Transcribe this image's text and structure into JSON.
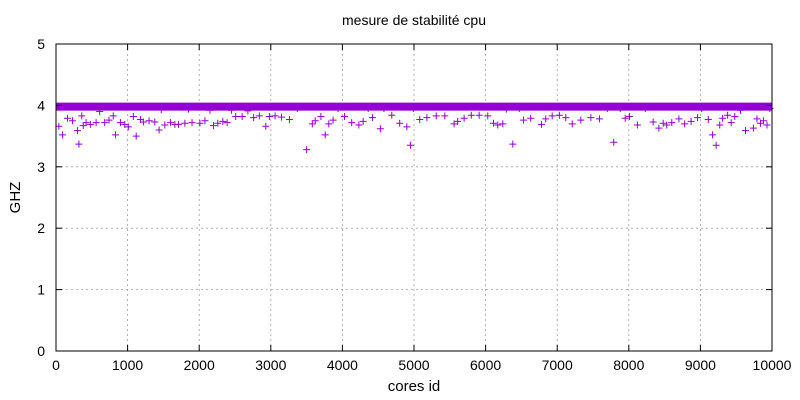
{
  "chart_data": {
    "type": "scatter",
    "title": "mesure de stabilité cpu",
    "xlabel": "cores id",
    "ylabel": "GHZ",
    "xlim": [
      0,
      10000
    ],
    "ylim": [
      0,
      5
    ],
    "xticks": [
      0,
      1000,
      2000,
      3000,
      4000,
      5000,
      6000,
      7000,
      8000,
      9000,
      10000
    ],
    "yticks": [
      0,
      1,
      2,
      3,
      4,
      5
    ],
    "grid": true,
    "marker": "plus",
    "color": "#9400d3",
    "series": [
      {
        "name": "",
        "dense_band": {
          "x_start": 0,
          "x_end": 10000,
          "y": 3.98
        },
        "points": [
          [
            40,
            3.66
          ],
          [
            90,
            3.52
          ],
          [
            160,
            3.79
          ],
          [
            230,
            3.75
          ],
          [
            300,
            3.59
          ],
          [
            320,
            3.37
          ],
          [
            360,
            3.83
          ],
          [
            380,
            3.67
          ],
          [
            420,
            3.72
          ],
          [
            480,
            3.69
          ],
          [
            560,
            3.72
          ],
          [
            610,
            3.9
          ],
          [
            680,
            3.72
          ],
          [
            740,
            3.76
          ],
          [
            800,
            3.83
          ],
          [
            830,
            3.52
          ],
          [
            900,
            3.72
          ],
          [
            960,
            3.69
          ],
          [
            1010,
            3.65
          ],
          [
            1080,
            3.82
          ],
          [
            1120,
            3.5
          ],
          [
            1180,
            3.77
          ],
          [
            1220,
            3.73
          ],
          [
            1300,
            3.75
          ],
          [
            1380,
            3.73
          ],
          [
            1440,
            3.6
          ],
          [
            1470,
            3.93
          ],
          [
            1520,
            3.68
          ],
          [
            1600,
            3.72
          ],
          [
            1660,
            3.69
          ],
          [
            1710,
            3.69
          ],
          [
            1800,
            3.71
          ],
          [
            1850,
            3.94
          ],
          [
            1900,
            3.72
          ],
          [
            2010,
            3.71
          ],
          [
            2080,
            3.75
          ],
          [
            2150,
            3.92
          ],
          [
            2200,
            3.67
          ],
          [
            2260,
            3.71
          ],
          [
            2330,
            3.74
          ],
          [
            2390,
            3.72
          ],
          [
            2450,
            3.92
          ],
          [
            2510,
            3.82
          ],
          [
            2600,
            3.82
          ],
          [
            2680,
            3.91
          ],
          [
            2760,
            3.8
          ],
          [
            2840,
            3.83
          ],
          [
            2930,
            3.66
          ],
          [
            2980,
            3.82
          ],
          [
            3060,
            3.83
          ],
          [
            3150,
            3.81
          ],
          [
            3260,
            3.77
          ],
          [
            3370,
            3.95
          ],
          [
            3500,
            3.28
          ],
          [
            3580,
            3.7
          ],
          [
            3620,
            3.75
          ],
          [
            3700,
            3.82
          ],
          [
            3760,
            3.52
          ],
          [
            3810,
            3.7
          ],
          [
            3870,
            3.76
          ],
          [
            3940,
            3.95
          ],
          [
            4030,
            3.82
          ],
          [
            4130,
            3.72
          ],
          [
            4230,
            3.68
          ],
          [
            4290,
            3.74
          ],
          [
            4360,
            3.95
          ],
          [
            4420,
            3.8
          ],
          [
            4530,
            3.62
          ],
          [
            4580,
            3.95
          ],
          [
            4690,
            3.84
          ],
          [
            4800,
            3.71
          ],
          [
            4900,
            3.65
          ],
          [
            4950,
            3.35
          ],
          [
            4990,
            3.95
          ],
          [
            5080,
            3.77
          ],
          [
            5180,
            3.8
          ],
          [
            5310,
            3.83
          ],
          [
            5430,
            3.83
          ],
          [
            5560,
            3.7
          ],
          [
            5610,
            3.74
          ],
          [
            5700,
            3.79
          ],
          [
            5800,
            3.84
          ],
          [
            5910,
            3.84
          ],
          [
            6030,
            3.83
          ],
          [
            6110,
            3.71
          ],
          [
            6170,
            3.68
          ],
          [
            6240,
            3.7
          ],
          [
            6290,
            3.94
          ],
          [
            6380,
            3.37
          ],
          [
            6470,
            3.95
          ],
          [
            6530,
            3.76
          ],
          [
            6630,
            3.79
          ],
          [
            6780,
            3.69
          ],
          [
            6840,
            3.78
          ],
          [
            6930,
            3.83
          ],
          [
            7030,
            3.84
          ],
          [
            7120,
            3.8
          ],
          [
            7210,
            3.7
          ],
          [
            7330,
            3.76
          ],
          [
            7470,
            3.8
          ],
          [
            7590,
            3.78
          ],
          [
            7700,
            3.95
          ],
          [
            7790,
            3.4
          ],
          [
            7880,
            3.95
          ],
          [
            7950,
            3.79
          ],
          [
            8010,
            3.82
          ],
          [
            8120,
            3.68
          ],
          [
            8230,
            3.95
          ],
          [
            8340,
            3.73
          ],
          [
            8420,
            3.63
          ],
          [
            8480,
            3.71
          ],
          [
            8530,
            3.68
          ],
          [
            8600,
            3.72
          ],
          [
            8700,
            3.78
          ],
          [
            8780,
            3.7
          ],
          [
            8870,
            3.74
          ],
          [
            8960,
            3.8
          ],
          [
            9020,
            3.95
          ],
          [
            9110,
            3.77
          ],
          [
            9170,
            3.52
          ],
          [
            9220,
            3.35
          ],
          [
            9270,
            3.68
          ],
          [
            9310,
            3.79
          ],
          [
            9380,
            3.84
          ],
          [
            9430,
            3.72
          ],
          [
            9480,
            3.82
          ],
          [
            9560,
            3.92
          ],
          [
            9630,
            3.59
          ],
          [
            9740,
            3.63
          ],
          [
            9790,
            3.78
          ],
          [
            9840,
            3.71
          ],
          [
            9880,
            3.75
          ],
          [
            9930,
            3.68
          ],
          [
            9970,
            3.95
          ]
        ]
      }
    ]
  }
}
